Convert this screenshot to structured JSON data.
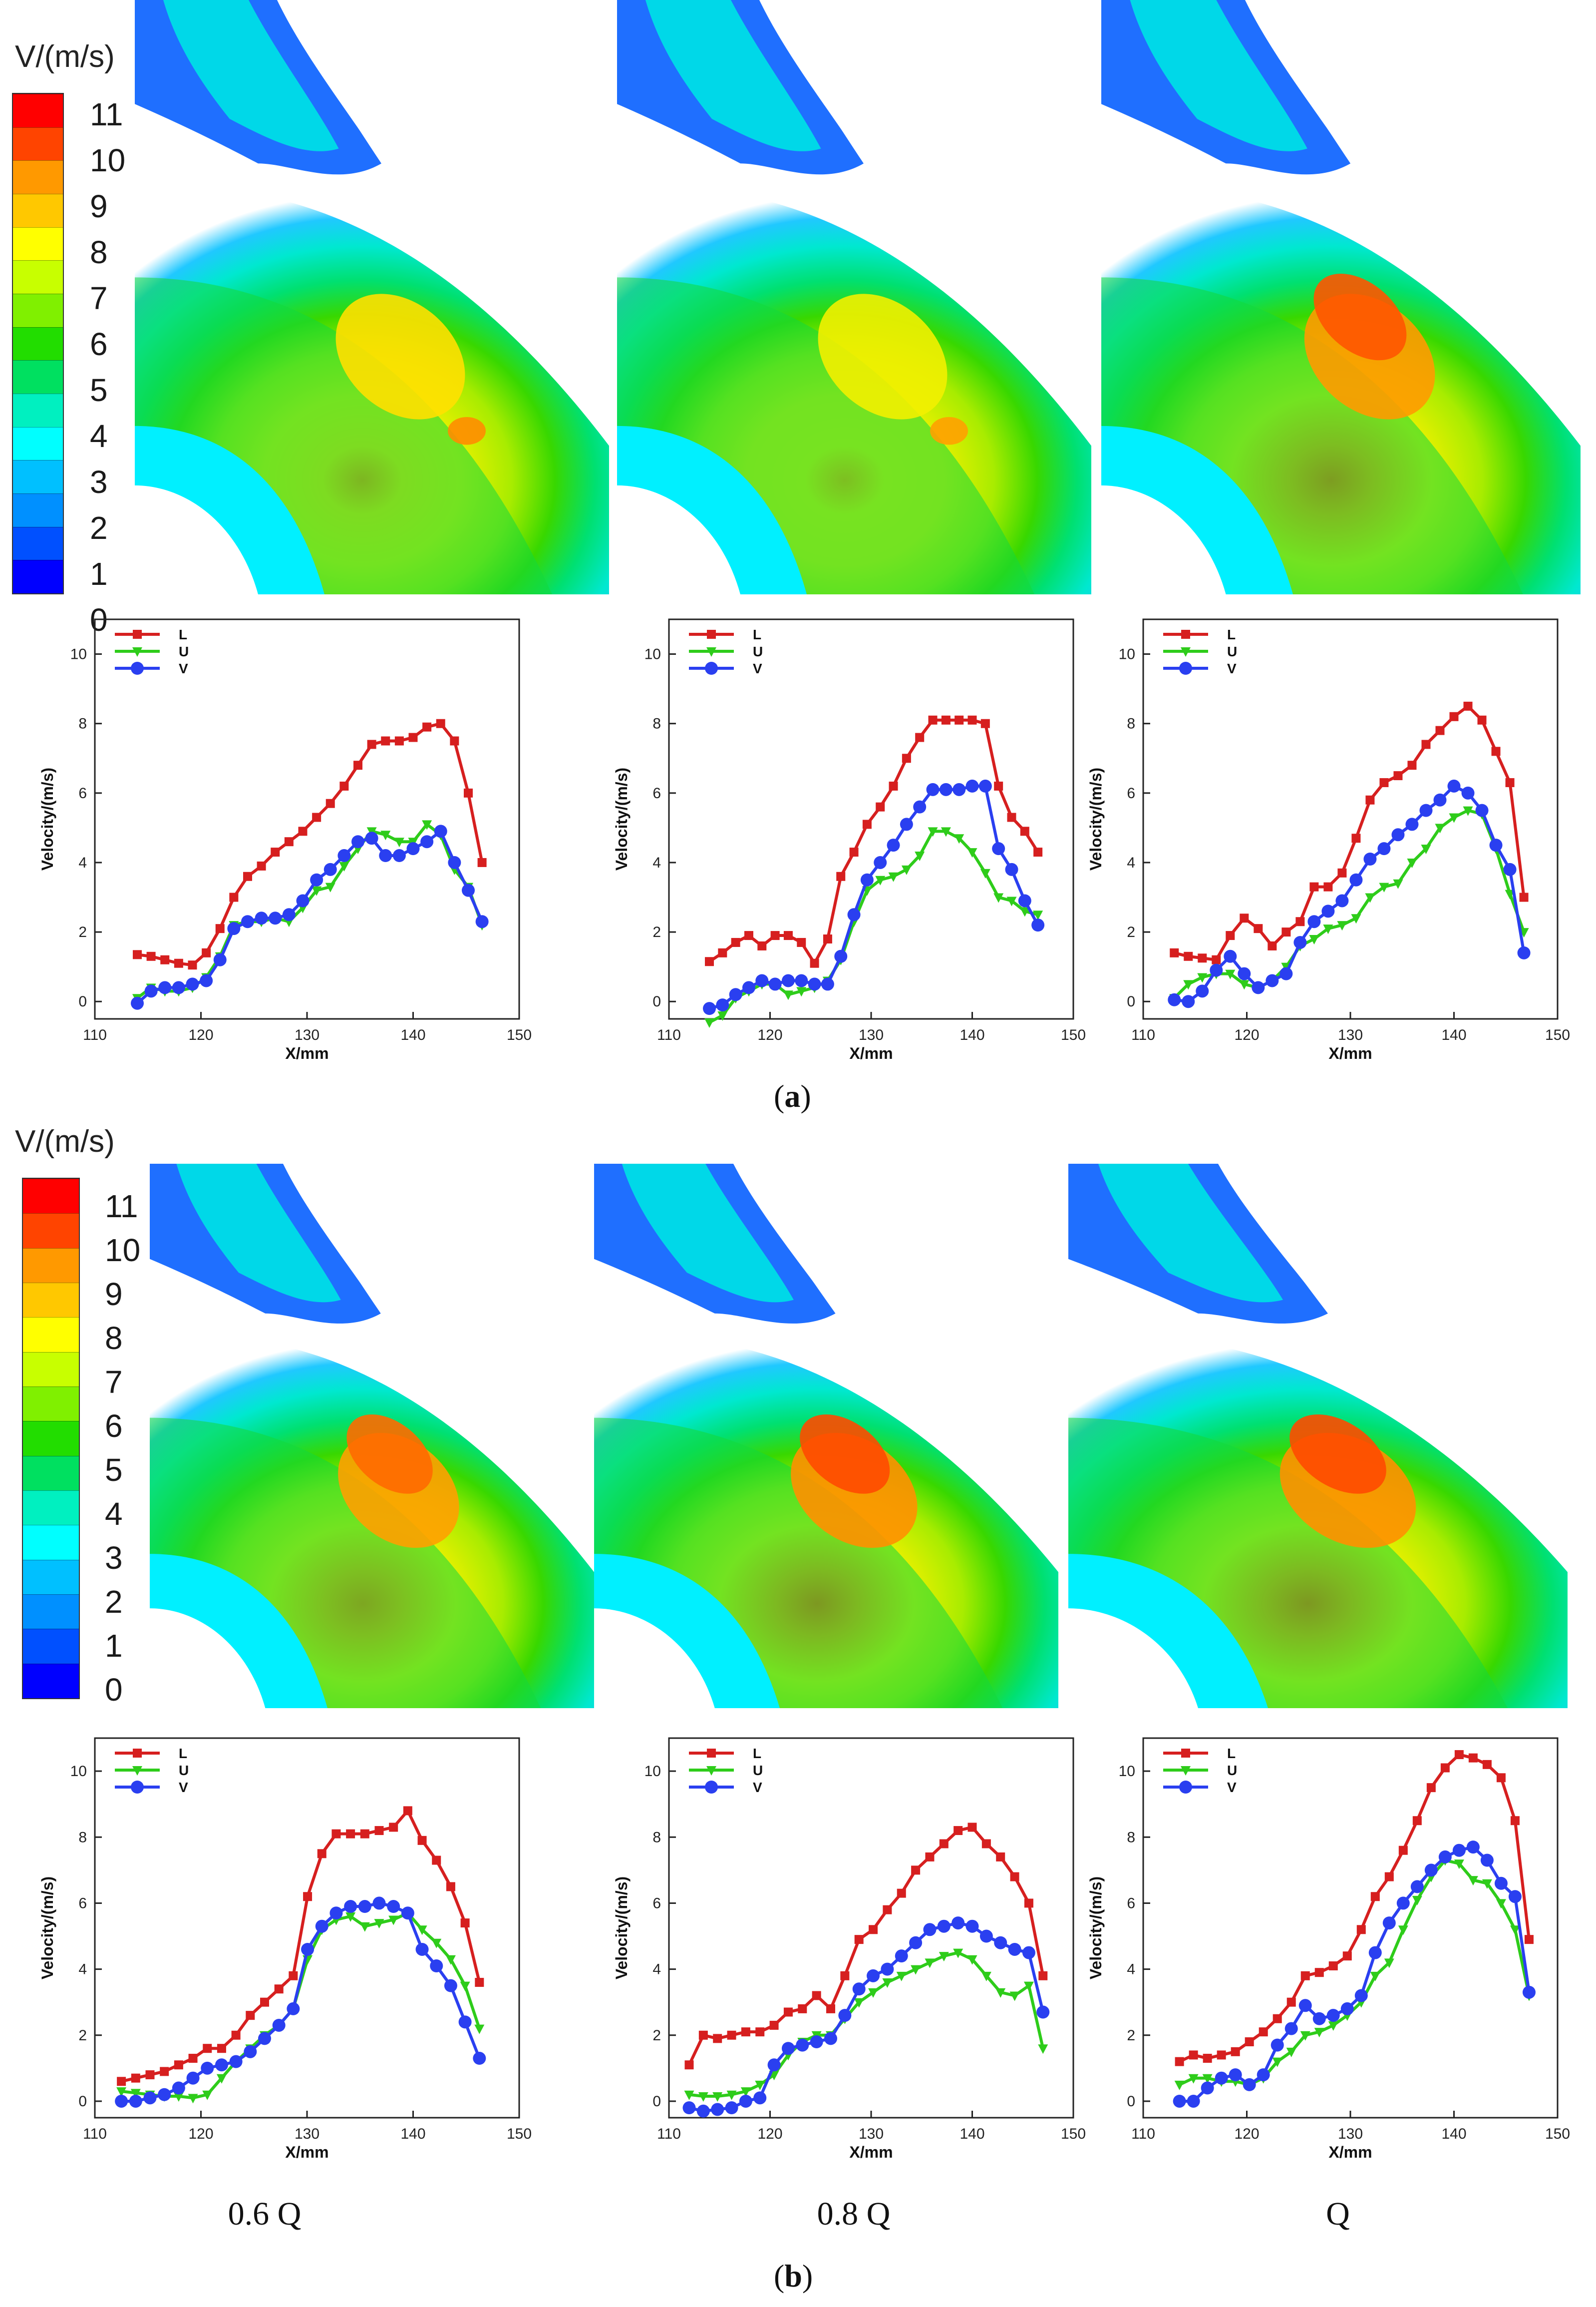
{
  "figure": {
    "colorbar": {
      "title": "V/(m/s)",
      "ticks": [
        "11",
        "10",
        "9",
        "8",
        "7",
        "6",
        "5",
        "4",
        "3",
        "2",
        "1",
        "0"
      ],
      "colors": [
        "#ff0000",
        "#ff4400",
        "#ff9900",
        "#ffc800",
        "#ffff00",
        "#c8ff00",
        "#80f000",
        "#22dd00",
        "#00e060",
        "#00f0c0",
        "#00ffff",
        "#00c0ff",
        "#0090ff",
        "#0050ff",
        "#0000ff"
      ]
    },
    "panel_labels": {
      "a_open": "(",
      "a_letter": "a",
      "a_close": ")",
      "b_open": "(",
      "b_letter": "b",
      "b_close": ")"
    },
    "conditions": [
      "0.6 Q",
      "0.8 Q",
      "Q"
    ],
    "series_colors": {
      "L": "#d61f1f",
      "U": "#2ecc1a",
      "V": "#2a3ff0"
    }
  },
  "chart_data": [
    {
      "type": "line",
      "panel": "a",
      "condition": "0.6 Q",
      "xlabel": "X/mm",
      "ylabel": "Velocity/(m/s)",
      "xlim": [
        110,
        150
      ],
      "ylim": [
        -0.5,
        11
      ],
      "xticks": [
        110,
        120,
        130,
        140,
        150
      ],
      "yticks": [
        0,
        2,
        4,
        6,
        8,
        10
      ],
      "legend": [
        "L",
        "U",
        "V"
      ],
      "x": [
        114,
        115.3,
        116.6,
        117.9,
        119.2,
        120.5,
        121.8,
        123.1,
        124.4,
        125.7,
        127,
        128.3,
        129.6,
        130.9,
        132.2,
        133.5,
        134.8,
        136.1,
        137.4,
        138.7,
        140,
        141.3,
        142.6,
        143.9,
        145.2,
        146.5
      ],
      "series": [
        {
          "name": "L",
          "values": [
            1.35,
            1.3,
            1.2,
            1.1,
            1.05,
            1.4,
            2.1,
            3.0,
            3.6,
            3.9,
            4.3,
            4.6,
            4.9,
            5.3,
            5.7,
            6.2,
            6.8,
            7.4,
            7.5,
            7.5,
            7.6,
            7.9,
            8.0,
            7.5,
            6.0,
            4.0
          ]
        },
        {
          "name": "U",
          "values": [
            0.1,
            0.4,
            0.3,
            0.3,
            0.4,
            0.7,
            1.3,
            2.2,
            2.3,
            2.3,
            2.4,
            2.3,
            2.7,
            3.2,
            3.3,
            3.9,
            4.4,
            4.9,
            4.8,
            4.6,
            4.6,
            5.1,
            4.8,
            3.8,
            3.3,
            2.2
          ]
        },
        {
          "name": "V",
          "values": [
            -0.05,
            0.3,
            0.4,
            0.4,
            0.5,
            0.6,
            1.2,
            2.1,
            2.3,
            2.4,
            2.4,
            2.5,
            2.9,
            3.5,
            3.8,
            4.2,
            4.6,
            4.7,
            4.2,
            4.2,
            4.4,
            4.6,
            4.9,
            4.0,
            3.2,
            2.3
          ]
        }
      ]
    },
    {
      "type": "line",
      "panel": "a",
      "condition": "0.8 Q",
      "xlabel": "X/mm",
      "ylabel": "Velocity/(m/s)",
      "xlim": [
        110,
        150
      ],
      "ylim": [
        -0.5,
        11
      ],
      "xticks": [
        110,
        120,
        130,
        140,
        150
      ],
      "yticks": [
        0,
        2,
        4,
        6,
        8,
        10
      ],
      "legend": [
        "L",
        "U",
        "V"
      ],
      "x": [
        114,
        115.3,
        116.6,
        117.9,
        119.2,
        120.5,
        121.8,
        123.1,
        124.4,
        125.7,
        127,
        128.3,
        129.6,
        130.9,
        132.2,
        133.5,
        134.8,
        136.1,
        137.4,
        138.7,
        140,
        141.3,
        142.6,
        143.9,
        145.2,
        146.5
      ],
      "series": [
        {
          "name": "L",
          "values": [
            1.15,
            1.4,
            1.7,
            1.9,
            1.6,
            1.9,
            1.9,
            1.7,
            1.1,
            1.8,
            3.6,
            4.3,
            5.1,
            5.6,
            6.2,
            7.0,
            7.6,
            8.1,
            8.1,
            8.1,
            8.1,
            8.0,
            6.2,
            5.3,
            4.9,
            4.3
          ]
        },
        {
          "name": "U",
          "values": [
            -0.6,
            -0.4,
            0.1,
            0.3,
            0.5,
            0.5,
            0.2,
            0.3,
            0.4,
            0.6,
            1.2,
            2.3,
            3.2,
            3.5,
            3.6,
            3.8,
            4.2,
            4.9,
            4.9,
            4.7,
            4.3,
            3.7,
            3.0,
            2.9,
            2.6,
            2.5
          ]
        },
        {
          "name": "V",
          "values": [
            -0.2,
            -0.1,
            0.2,
            0.4,
            0.6,
            0.5,
            0.6,
            0.6,
            0.5,
            0.5,
            1.3,
            2.5,
            3.5,
            4.0,
            4.5,
            5.1,
            5.6,
            6.1,
            6.1,
            6.1,
            6.2,
            6.2,
            4.4,
            3.8,
            2.9,
            2.2
          ]
        }
      ]
    },
    {
      "type": "line",
      "panel": "a",
      "condition": "Q",
      "xlabel": "X/mm",
      "ylabel": "Velocity/(m/s)",
      "xlim": [
        110,
        150
      ],
      "ylim": [
        -0.5,
        11
      ],
      "xticks": [
        110,
        120,
        130,
        140,
        150
      ],
      "yticks": [
        0,
        2,
        4,
        6,
        8,
        10
      ],
      "legend": [
        "L",
        "U",
        "V"
      ],
      "x": [
        113,
        114.35,
        115.7,
        117.05,
        118.4,
        119.75,
        121.1,
        122.45,
        123.8,
        125.15,
        126.5,
        127.85,
        129.2,
        130.55,
        131.9,
        133.25,
        134.6,
        135.95,
        137.3,
        138.65,
        140,
        141.35,
        142.7,
        144.05,
        145.4,
        146.75
      ],
      "series": [
        {
          "name": "L",
          "values": [
            1.4,
            1.3,
            1.25,
            1.2,
            1.9,
            2.4,
            2.1,
            1.6,
            2.0,
            2.3,
            3.3,
            3.3,
            3.7,
            4.7,
            5.8,
            6.3,
            6.5,
            6.8,
            7.4,
            7.8,
            8.2,
            8.5,
            8.1,
            7.2,
            6.3,
            3.0
          ]
        },
        {
          "name": "U",
          "values": [
            0.1,
            0.5,
            0.7,
            0.8,
            0.8,
            0.5,
            0.4,
            0.6,
            1.0,
            1.6,
            1.8,
            2.1,
            2.2,
            2.4,
            3.0,
            3.3,
            3.4,
            4.0,
            4.4,
            5.0,
            5.3,
            5.5,
            5.4,
            4.4,
            3.1,
            2.0
          ]
        },
        {
          "name": "V",
          "values": [
            0.05,
            0.0,
            0.3,
            0.9,
            1.3,
            0.8,
            0.4,
            0.6,
            0.8,
            1.7,
            2.3,
            2.6,
            2.9,
            3.5,
            4.1,
            4.4,
            4.8,
            5.1,
            5.5,
            5.8,
            6.2,
            6.0,
            5.5,
            4.5,
            3.8,
            1.4
          ]
        }
      ]
    },
    {
      "type": "line",
      "panel": "b",
      "condition": "0.6 Q",
      "xlabel": "X/mm",
      "ylabel": "Velocity/(m/s)",
      "xlim": [
        110,
        150
      ],
      "ylim": [
        -0.5,
        11
      ],
      "xticks": [
        110,
        120,
        130,
        140,
        150
      ],
      "yticks": [
        0,
        2,
        4,
        6,
        8,
        10
      ],
      "legend": [
        "L",
        "U",
        "V"
      ],
      "x": [
        112.5,
        113.85,
        115.2,
        116.55,
        117.9,
        119.25,
        120.6,
        121.95,
        123.3,
        124.65,
        126,
        127.35,
        128.7,
        130.05,
        131.4,
        132.75,
        134.1,
        135.45,
        136.8,
        138.15,
        139.5,
        140.85,
        142.2,
        143.55,
        144.9,
        146.25
      ],
      "series": [
        {
          "name": "L",
          "values": [
            0.6,
            0.7,
            0.8,
            0.9,
            1.1,
            1.3,
            1.6,
            1.6,
            2.0,
            2.6,
            3.0,
            3.4,
            3.8,
            6.2,
            7.5,
            8.1,
            8.1,
            8.1,
            8.2,
            8.3,
            8.8,
            7.9,
            7.3,
            6.5,
            5.4,
            3.6
          ]
        },
        {
          "name": "U",
          "values": [
            0.3,
            0.25,
            0.2,
            0.15,
            0.15,
            0.1,
            0.2,
            0.7,
            1.2,
            1.6,
            2.0,
            2.3,
            2.8,
            4.3,
            5.2,
            5.5,
            5.6,
            5.3,
            5.4,
            5.5,
            5.7,
            5.2,
            4.8,
            4.3,
            3.5,
            2.2
          ]
        },
        {
          "name": "V",
          "values": [
            0.0,
            0.0,
            0.1,
            0.2,
            0.4,
            0.7,
            1.0,
            1.1,
            1.2,
            1.5,
            1.9,
            2.3,
            2.8,
            4.6,
            5.3,
            5.7,
            5.9,
            5.9,
            6.0,
            5.9,
            5.7,
            4.6,
            4.1,
            3.5,
            2.4,
            1.3
          ]
        }
      ]
    },
    {
      "type": "line",
      "panel": "b",
      "condition": "0.8 Q",
      "xlabel": "X/mm",
      "ylabel": "Velocity/(m/s)",
      "xlim": [
        110,
        150
      ],
      "ylim": [
        -0.5,
        11
      ],
      "xticks": [
        110,
        120,
        130,
        140,
        150
      ],
      "yticks": [
        0,
        2,
        4,
        6,
        8,
        10
      ],
      "legend": [
        "L",
        "U",
        "V"
      ],
      "x": [
        112,
        113.4,
        114.8,
        116.2,
        117.6,
        119,
        120.4,
        121.8,
        123.2,
        124.6,
        126,
        127.4,
        128.8,
        130.2,
        131.6,
        133,
        134.4,
        135.8,
        137.2,
        138.6,
        140,
        141.4,
        142.8,
        144.2,
        145.6,
        147
      ],
      "series": [
        {
          "name": "L",
          "values": [
            1.1,
            2.0,
            1.9,
            2.0,
            2.1,
            2.1,
            2.3,
            2.7,
            2.8,
            3.2,
            2.8,
            3.8,
            4.9,
            5.2,
            5.8,
            6.3,
            7.0,
            7.4,
            7.8,
            8.2,
            8.3,
            7.8,
            7.4,
            6.8,
            6.0,
            3.8
          ]
        },
        {
          "name": "U",
          "values": [
            0.2,
            0.15,
            0.15,
            0.2,
            0.3,
            0.5,
            0.8,
            1.4,
            1.8,
            2.0,
            2.0,
            2.5,
            3.0,
            3.3,
            3.6,
            3.8,
            4.0,
            4.2,
            4.4,
            4.5,
            4.3,
            3.8,
            3.3,
            3.2,
            3.5,
            1.6
          ]
        },
        {
          "name": "V",
          "values": [
            -0.2,
            -0.3,
            -0.25,
            -0.2,
            0.0,
            0.1,
            1.1,
            1.6,
            1.7,
            1.8,
            1.9,
            2.6,
            3.4,
            3.8,
            4.0,
            4.4,
            4.8,
            5.2,
            5.3,
            5.4,
            5.3,
            5.0,
            4.8,
            4.6,
            4.5,
            2.7
          ]
        }
      ]
    },
    {
      "type": "line",
      "panel": "b",
      "condition": "Q",
      "xlabel": "X/mm",
      "ylabel": "Velocity/(m/s)",
      "xlim": [
        110,
        150
      ],
      "ylim": [
        -0.5,
        11
      ],
      "xticks": [
        110,
        120,
        130,
        140,
        150
      ],
      "yticks": [
        0,
        2,
        4,
        6,
        8,
        10
      ],
      "legend": [
        "L",
        "U",
        "V"
      ],
      "x": [
        113.5,
        114.85,
        116.2,
        117.55,
        118.9,
        120.25,
        121.6,
        122.95,
        124.3,
        125.65,
        127,
        128.35,
        129.7,
        131.05,
        132.4,
        133.75,
        135.1,
        136.45,
        137.8,
        139.15,
        140.5,
        141.85,
        143.2,
        144.55,
        145.9,
        147.25
      ],
      "series": [
        {
          "name": "L",
          "values": [
            1.2,
            1.4,
            1.3,
            1.4,
            1.5,
            1.8,
            2.1,
            2.5,
            3.0,
            3.8,
            3.9,
            4.1,
            4.4,
            5.2,
            6.2,
            6.8,
            7.6,
            8.5,
            9.5,
            10.1,
            10.5,
            10.4,
            10.2,
            9.8,
            8.5,
            4.9
          ]
        },
        {
          "name": "U",
          "values": [
            0.5,
            0.7,
            0.7,
            0.6,
            0.6,
            0.5,
            0.7,
            1.2,
            1.5,
            2.0,
            2.1,
            2.3,
            2.6,
            3.0,
            3.8,
            4.2,
            5.2,
            6.1,
            6.8,
            7.3,
            7.2,
            6.7,
            6.6,
            6.0,
            5.2,
            3.2
          ]
        },
        {
          "name": "V",
          "values": [
            0.0,
            0.0,
            0.4,
            0.7,
            0.8,
            0.5,
            0.8,
            1.7,
            2.2,
            2.9,
            2.5,
            2.6,
            2.8,
            3.2,
            4.5,
            5.4,
            6.0,
            6.5,
            7.0,
            7.4,
            7.6,
            7.7,
            7.3,
            6.6,
            6.2,
            3.3
          ]
        }
      ]
    }
  ]
}
